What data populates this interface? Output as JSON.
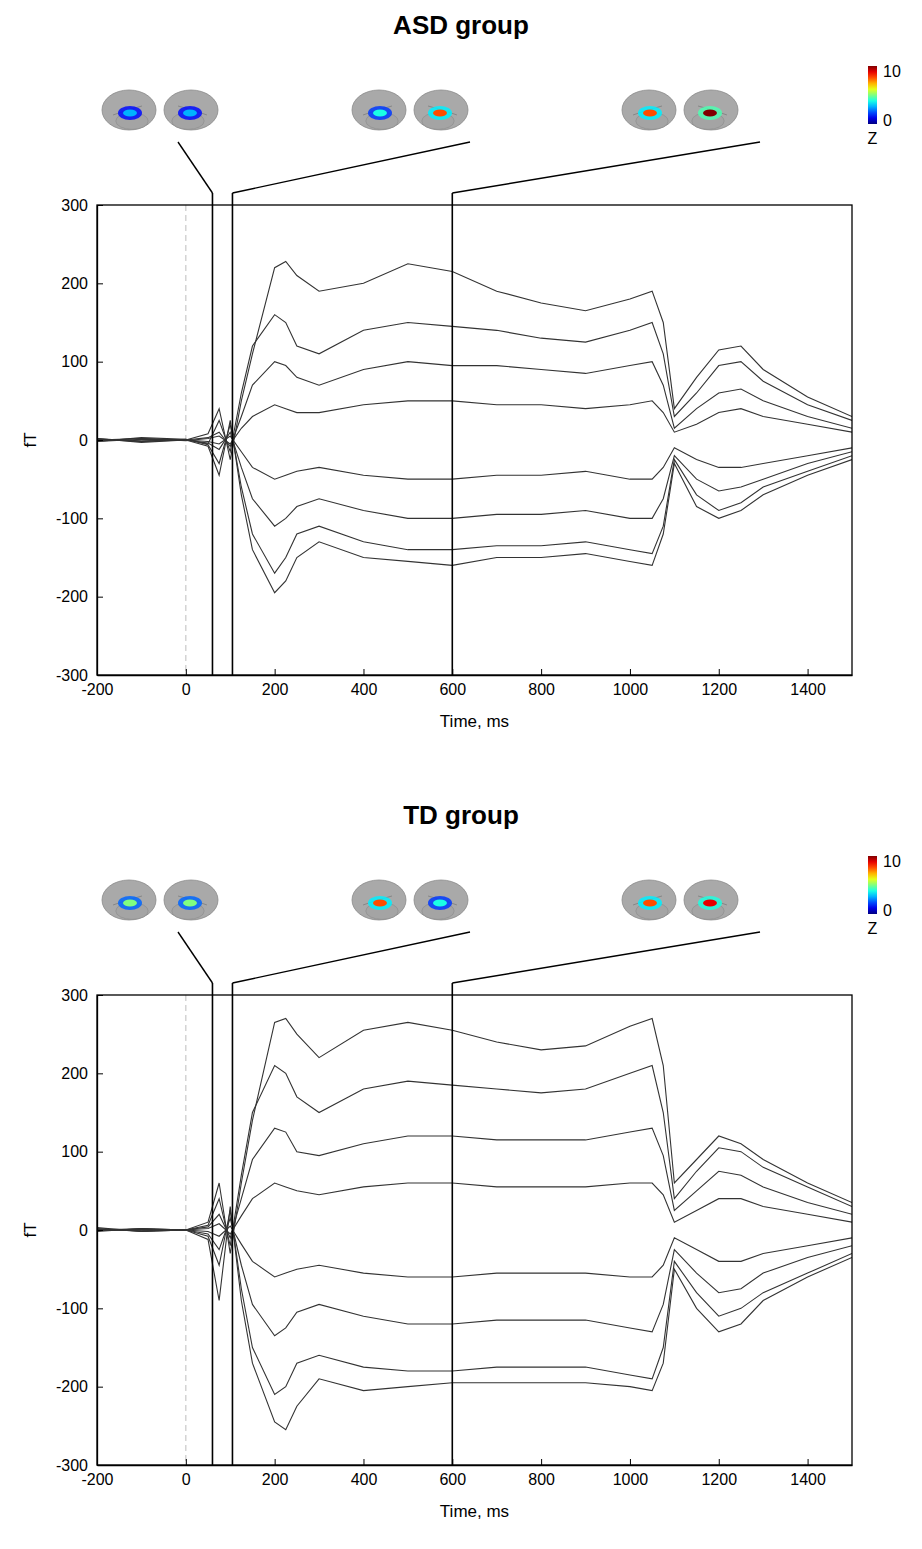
{
  "chart_data": [
    {
      "type": "line",
      "title": "ASD group",
      "x_label": "Time, ms",
      "y_label": "fT",
      "color": "#333333",
      "xlim": [
        -200,
        1500
      ],
      "ylim": [
        -300,
        300
      ],
      "xticks": [
        -200,
        0,
        200,
        400,
        600,
        800,
        1000,
        1200,
        1400
      ],
      "yticks": [
        -300,
        -200,
        -100,
        0,
        100,
        200,
        300
      ],
      "onset_x": 0,
      "x": [
        -200,
        -100,
        0,
        50,
        75,
        100,
        125,
        150,
        200,
        225,
        250,
        300,
        400,
        500,
        600,
        700,
        800,
        900,
        1000,
        1050,
        1075,
        1100,
        1150,
        1200,
        1250,
        1300,
        1400,
        1500
      ],
      "series": [
        {
          "values": [
            2,
            -3,
            0,
            8,
            40,
            -25,
            50,
            110,
            220,
            228,
            210,
            190,
            200,
            225,
            215,
            190,
            175,
            165,
            180,
            190,
            150,
            40,
            80,
            115,
            120,
            90,
            55,
            30
          ]
        },
        {
          "values": [
            -2,
            3,
            1,
            -5,
            25,
            -15,
            60,
            120,
            160,
            150,
            120,
            110,
            140,
            150,
            145,
            140,
            130,
            125,
            140,
            150,
            110,
            30,
            60,
            95,
            100,
            75,
            45,
            25
          ]
        },
        {
          "values": [
            1,
            -2,
            0,
            3,
            10,
            -8,
            30,
            70,
            100,
            95,
            80,
            70,
            90,
            100,
            95,
            95,
            90,
            85,
            95,
            100,
            70,
            15,
            40,
            60,
            65,
            50,
            30,
            15
          ]
        },
        {
          "values": [
            0,
            2,
            -1,
            2,
            5,
            -5,
            15,
            30,
            45,
            40,
            35,
            35,
            45,
            50,
            50,
            45,
            45,
            40,
            45,
            50,
            35,
            10,
            20,
            35,
            40,
            30,
            20,
            10
          ]
        },
        {
          "values": [
            1,
            -1,
            0,
            -2,
            -5,
            5,
            -15,
            -35,
            -50,
            -45,
            -40,
            -35,
            -45,
            -50,
            -50,
            -45,
            -45,
            -40,
            -50,
            -50,
            -35,
            -10,
            -25,
            -35,
            -35,
            -30,
            -20,
            -10
          ]
        },
        {
          "values": [
            -1,
            2,
            0,
            -4,
            -12,
            10,
            -35,
            -75,
            -110,
            -100,
            -85,
            -75,
            -90,
            -100,
            -100,
            -95,
            -95,
            -90,
            -100,
            -100,
            -75,
            -20,
            -50,
            -65,
            -60,
            -50,
            -30,
            -15
          ]
        },
        {
          "values": [
            2,
            -2,
            1,
            -6,
            -30,
            20,
            -60,
            -120,
            -170,
            -150,
            -120,
            -110,
            -130,
            -140,
            -140,
            -135,
            -135,
            -130,
            -140,
            -145,
            -110,
            -25,
            -70,
            -90,
            -80,
            -60,
            -40,
            -20
          ]
        },
        {
          "values": [
            -2,
            1,
            0,
            -8,
            -45,
            25,
            -70,
            -140,
            -195,
            -180,
            -150,
            -130,
            -150,
            -155,
            -160,
            -150,
            -150,
            -145,
            -155,
            -160,
            -120,
            -30,
            -85,
            -100,
            -90,
            -70,
            -45,
            -25
          ]
        }
      ],
      "source_maps": [
        {
          "time": 60,
          "peak_z": [
            3,
            3
          ]
        },
        {
          "time": 105,
          "peak_z": [
            4,
            8
          ]
        },
        {
          "time": 600,
          "peak_z": [
            8,
            10
          ]
        }
      ],
      "colorbar": {
        "range": [
          0,
          10
        ],
        "ticks": [
          0,
          10
        ],
        "label": "Z"
      }
    },
    {
      "type": "line",
      "title": "TD group",
      "x_label": "Time, ms",
      "y_label": "fT",
      "color": "#333333",
      "xlim": [
        -200,
        1500
      ],
      "ylim": [
        -300,
        300
      ],
      "xticks": [
        -200,
        0,
        200,
        400,
        600,
        800,
        1000,
        1200,
        1400
      ],
      "yticks": [
        -300,
        -200,
        -100,
        0,
        100,
        200,
        300
      ],
      "onset_x": 0,
      "x": [
        -200,
        -100,
        0,
        50,
        75,
        100,
        125,
        150,
        200,
        225,
        250,
        300,
        400,
        500,
        600,
        700,
        800,
        900,
        1000,
        1050,
        1075,
        1100,
        1150,
        1200,
        1250,
        1300,
        1400,
        1500
      ],
      "series": [
        {
          "values": [
            3,
            -2,
            0,
            10,
            60,
            -30,
            60,
            140,
            265,
            270,
            250,
            220,
            255,
            265,
            255,
            240,
            230,
            235,
            260,
            270,
            210,
            60,
            90,
            120,
            110,
            90,
            60,
            35
          ]
        },
        {
          "values": [
            -2,
            2,
            0,
            6,
            40,
            -20,
            70,
            150,
            210,
            200,
            170,
            150,
            180,
            190,
            185,
            180,
            175,
            180,
            200,
            210,
            150,
            40,
            75,
            105,
            100,
            80,
            55,
            30
          ]
        },
        {
          "values": [
            1,
            -1,
            0,
            4,
            20,
            -10,
            40,
            90,
            130,
            125,
            100,
            95,
            110,
            120,
            120,
            115,
            115,
            115,
            125,
            130,
            95,
            25,
            50,
            75,
            70,
            55,
            35,
            20
          ]
        },
        {
          "values": [
            0,
            1,
            0,
            2,
            8,
            -5,
            18,
            40,
            60,
            55,
            50,
            45,
            55,
            60,
            60,
            55,
            55,
            55,
            60,
            60,
            45,
            10,
            25,
            40,
            40,
            30,
            20,
            10
          ]
        },
        {
          "values": [
            0,
            -1,
            0,
            -2,
            -8,
            5,
            -18,
            -40,
            -60,
            -55,
            -50,
            -45,
            -55,
            -60,
            -60,
            -55,
            -55,
            -55,
            -60,
            -60,
            -45,
            -10,
            -25,
            -40,
            -40,
            -30,
            -20,
            -10
          ]
        },
        {
          "values": [
            1,
            1,
            0,
            -5,
            -25,
            15,
            -45,
            -95,
            -135,
            -125,
            -105,
            -95,
            -110,
            -120,
            -120,
            -115,
            -115,
            -115,
            -125,
            -130,
            -95,
            -25,
            -55,
            -80,
            -75,
            -55,
            -35,
            -20
          ]
        },
        {
          "values": [
            -1,
            2,
            0,
            -8,
            -45,
            25,
            -75,
            -150,
            -210,
            -200,
            -170,
            -160,
            -175,
            -180,
            -180,
            -175,
            -175,
            -175,
            -185,
            -190,
            -150,
            -40,
            -80,
            -110,
            -100,
            -80,
            -55,
            -30
          ]
        },
        {
          "values": [
            2,
            -2,
            0,
            -12,
            -90,
            30,
            -90,
            -170,
            -245,
            -255,
            -225,
            -190,
            -205,
            -200,
            -195,
            -195,
            -195,
            -195,
            -200,
            -205,
            -170,
            -50,
            -100,
            -130,
            -120,
            -90,
            -60,
            -35
          ]
        }
      ],
      "source_maps": [
        {
          "time": 60,
          "peak_z": [
            5,
            5
          ]
        },
        {
          "time": 105,
          "peak_z": [
            8,
            4
          ]
        },
        {
          "time": 600,
          "peak_z": [
            8,
            9
          ]
        }
      ],
      "colorbar": {
        "range": [
          0,
          10
        ],
        "ticks": [
          0,
          10
        ],
        "label": "Z"
      }
    }
  ]
}
